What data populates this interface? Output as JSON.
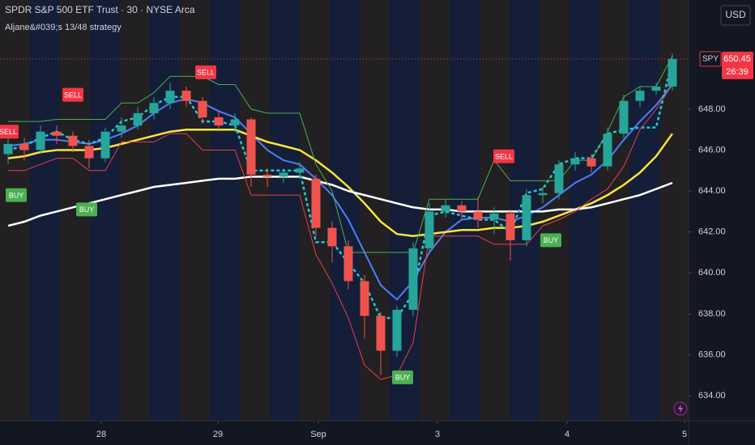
{
  "chart_data": {
    "type": "candlestick",
    "title": "SPDR S&P 500 ETF Trust · 30 · NYSE Arca",
    "subtitle": "Aljane&#039;s 13/48 strategy",
    "currency": "USD",
    "x": [
      0,
      1,
      2,
      3,
      4,
      5,
      6,
      7,
      8,
      9,
      10,
      11,
      12,
      13,
      14,
      15,
      16,
      17,
      18,
      19,
      20,
      21,
      22,
      23,
      24,
      25,
      26,
      27,
      28,
      29,
      30,
      31,
      32,
      33,
      34,
      35,
      36,
      37,
      38,
      39,
      40,
      41
    ],
    "open": [
      645.8,
      646.3,
      646.0,
      646.9,
      646.7,
      646.2,
      645.6,
      646.9,
      647.2,
      647.8,
      648.3,
      648.9,
      648.4,
      647.6,
      647.2,
      647.5,
      644.8,
      644.7,
      644.9,
      644.6,
      642.2,
      641.3,
      639.6,
      637.9,
      636.2,
      638.2,
      641.2,
      643.0,
      643.3,
      643.0,
      642.6,
      642.9,
      641.6,
      643.8,
      643.9,
      645.3,
      645.6,
      645.2,
      646.8,
      648.4,
      648.9,
      649.1
    ],
    "high": [
      646.6,
      646.6,
      647.2,
      647.2,
      646.9,
      646.5,
      647.1,
      647.6,
      648.1,
      648.6,
      649.3,
      649.1,
      648.6,
      647.9,
      647.8,
      647.6,
      645.1,
      645.1,
      645.4,
      644.8,
      642.5,
      641.6,
      639.9,
      638.1,
      638.4,
      641.5,
      643.4,
      643.6,
      643.5,
      643.7,
      643.2,
      643.1,
      644.1,
      644.2,
      645.5,
      645.9,
      645.8,
      647.1,
      648.7,
      649.1,
      649.3,
      650.7
    ],
    "low": [
      645.3,
      645.5,
      645.8,
      646.3,
      645.9,
      645.1,
      645.4,
      646.6,
      647.0,
      647.5,
      648.0,
      648.1,
      647.3,
      646.9,
      646.9,
      644.2,
      644.2,
      644.4,
      644.6,
      641.8,
      640.5,
      639.2,
      636.8,
      635.0,
      635.9,
      637.9,
      640.9,
      642.7,
      642.6,
      642.2,
      641.9,
      640.6,
      641.3,
      643.4,
      643.6,
      645.0,
      644.9,
      645.0,
      646.6,
      648.1,
      648.7,
      648.9
    ],
    "close": [
      646.3,
      646.0,
      646.9,
      646.7,
      646.2,
      645.6,
      646.9,
      647.2,
      647.8,
      648.3,
      648.9,
      648.4,
      647.6,
      647.2,
      647.5,
      644.8,
      644.7,
      644.9,
      645.1,
      642.2,
      641.3,
      639.6,
      637.9,
      636.2,
      638.2,
      641.2,
      643.0,
      643.3,
      643.0,
      642.6,
      642.9,
      641.6,
      643.8,
      643.9,
      645.3,
      645.6,
      645.2,
      646.8,
      648.4,
      648.9,
      649.1,
      650.45
    ],
    "up_color": "#26a69a",
    "down_color": "#ef5350",
    "lines": [
      {
        "color": "#4c7dff",
        "width": 2,
        "values": [
          646.2,
          646.3,
          646.5,
          646.5,
          646.4,
          646.3,
          646.5,
          646.8,
          647.2,
          647.8,
          648.3,
          648.5,
          648.3,
          647.9,
          647.6,
          646.8,
          646.0,
          645.5,
          645.3,
          644.6,
          643.8,
          642.6,
          641.0,
          639.4,
          638.7,
          639.6,
          641.0,
          642.0,
          642.6,
          642.7,
          642.7,
          642.5,
          642.8,
          643.2,
          643.8,
          644.4,
          644.8,
          645.5,
          646.5,
          647.4,
          648.2,
          649.2
        ]
      },
      {
        "color": "#f7e53b",
        "width": 2.5,
        "values": [
          645.6,
          645.7,
          645.9,
          646.0,
          646.0,
          646.0,
          646.1,
          646.3,
          646.5,
          646.7,
          646.9,
          647.0,
          647.0,
          647.0,
          647.0,
          646.7,
          646.4,
          646.2,
          646.0,
          645.5,
          644.9,
          644.2,
          643.4,
          642.5,
          641.9,
          641.8,
          641.9,
          642.0,
          642.1,
          642.1,
          642.2,
          642.2,
          642.3,
          642.5,
          642.8,
          643.1,
          643.4,
          643.8,
          644.3,
          644.9,
          645.7,
          646.8
        ]
      },
      {
        "color": "#ffffff",
        "width": 2.5,
        "values": [
          642.3,
          642.5,
          642.8,
          643.0,
          643.2,
          643.4,
          643.6,
          643.8,
          644.0,
          644.2,
          644.3,
          644.4,
          644.5,
          644.6,
          644.6,
          644.7,
          644.7,
          644.7,
          644.7,
          644.5,
          644.3,
          644.0,
          643.8,
          643.6,
          643.4,
          643.2,
          643.1,
          643.1,
          643.0,
          643.0,
          643.0,
          643.0,
          643.0,
          643.0,
          643.1,
          643.1,
          643.2,
          643.4,
          643.6,
          643.8,
          644.1,
          644.4
        ]
      },
      {
        "color": "#22c7d6",
        "width": 2.5,
        "dash": true,
        "values": [
          646.0,
          646.2,
          646.6,
          646.9,
          646.5,
          646.3,
          646.6,
          647.4,
          647.6,
          648.2,
          648.6,
          648.6,
          647.4,
          647.4,
          647.2,
          645.0,
          645.0,
          645.0,
          645.0,
          641.5,
          641.5,
          640.5,
          639.5,
          637.8,
          637.8,
          639.0,
          642.8,
          643.0,
          642.8,
          642.6,
          642.6,
          642.0,
          643.9,
          644.1,
          645.3,
          645.6,
          645.6,
          646.8,
          647.0,
          647.1,
          647.1,
          650.4
        ]
      },
      {
        "color": "#4caf50",
        "width": 1,
        "values": [
          647.4,
          647.4,
          647.4,
          647.5,
          647.5,
          647.5,
          647.5,
          648.3,
          648.3,
          648.8,
          649.6,
          649.6,
          649.6,
          649.2,
          649.2,
          648.0,
          647.8,
          647.8,
          647.8,
          645.3,
          644.0,
          641.0,
          641.0,
          641.0,
          641.0,
          641.0,
          643.6,
          643.6,
          643.6,
          643.6,
          645.5,
          644.5,
          644.5,
          644.5,
          644.5,
          645.5,
          645.5,
          646.9,
          648.6,
          649.1,
          649.1,
          650.6
        ]
      },
      {
        "color": "#e5404a",
        "width": 1,
        "values": [
          645.0,
          645.0,
          645.3,
          645.6,
          645.6,
          645.0,
          645.0,
          646.4,
          646.4,
          646.4,
          646.8,
          646.8,
          646.0,
          646.0,
          646.0,
          643.8,
          643.8,
          643.8,
          643.8,
          640.9,
          639.5,
          637.8,
          635.5,
          634.8,
          635.0,
          636.6,
          641.8,
          641.8,
          641.8,
          641.8,
          641.4,
          641.4,
          641.4,
          642.3,
          642.6,
          643.0,
          643.6,
          644.1,
          645.2,
          647.0,
          648.0,
          649.2
        ]
      }
    ],
    "signals": [
      {
        "label": "SELL",
        "x": 0,
        "y": 646.9,
        "color": "#f23645"
      },
      {
        "label": "SELL",
        "x": 4,
        "y": 648.7,
        "color": "#f23645"
      },
      {
        "label": "SELL",
        "x": 12.2,
        "y": 649.8,
        "color": "#f23645"
      },
      {
        "label": "SELL",
        "x": 30.6,
        "y": 645.7,
        "color": "#f23645"
      },
      {
        "label": "BUY",
        "x": 0.5,
        "y": 643.8,
        "color": "#4caf50"
      },
      {
        "label": "BUY",
        "x": 4.85,
        "y": 643.1,
        "color": "#4caf50"
      },
      {
        "label": "BUY",
        "x": 24.35,
        "y": 634.9,
        "color": "#4caf50"
      },
      {
        "label": "BUY",
        "x": 33.5,
        "y": 641.6,
        "color": "#4caf50"
      }
    ],
    "last": {
      "symbol": "SPY",
      "price": 650.45,
      "countdown": "26:39",
      "color": "#f23645"
    },
    "xlim": [
      -0.5,
      42
    ],
    "xticks": [
      {
        "value": 5.75,
        "label": "28"
      },
      {
        "value": 12.95,
        "label": "29"
      },
      {
        "value": 19.15,
        "label": "Sep"
      },
      {
        "value": 26.5,
        "label": "3"
      },
      {
        "value": 34.5,
        "label": "4"
      },
      {
        "value": 41.75,
        "label": "5"
      }
    ],
    "ylim": [
      632.78,
      653.33
    ],
    "yticks": [
      {
        "value": 634,
        "label": "634.00"
      },
      {
        "value": 636,
        "label": "636.00"
      },
      {
        "value": 638,
        "label": "638.00"
      },
      {
        "value": 640,
        "label": "640.00"
      },
      {
        "value": 642,
        "label": "642.00"
      },
      {
        "value": 644,
        "label": "644.00"
      },
      {
        "value": 646,
        "label": "646.00"
      },
      {
        "value": 648,
        "label": "648.00"
      }
    ]
  }
}
